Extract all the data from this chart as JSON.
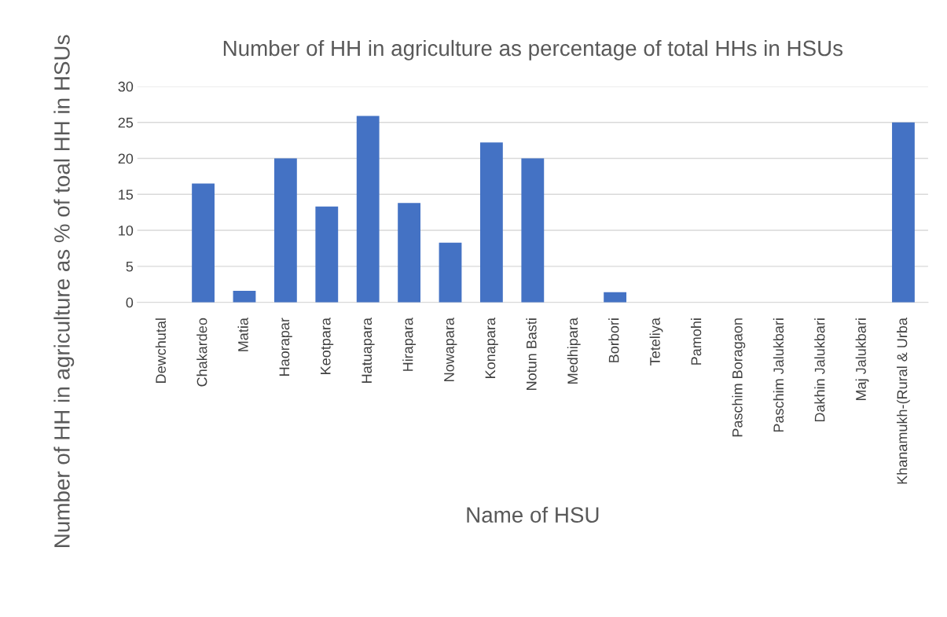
{
  "chart_data": {
    "type": "bar",
    "title": "Number of HH in agriculture as percentage of total HHs in HSUs",
    "xlabel": "Name of HSU",
    "ylabel": "Number of HH in agriculture as % of toal HH in HSUs",
    "categories": [
      "Dewchutal",
      "Chakardeo",
      "Matia",
      "Haorapar",
      "Keotpara",
      "Hatuapara",
      "Hirapara",
      "Nowapara",
      "Konapara",
      "Notun Basti",
      "Medhipara",
      "Borbori",
      "Teteliya",
      "Pamohi",
      "Paschim Boragaon",
      "Paschim Jalukbari",
      "Dakhin Jalukbari",
      "Maj Jalukbari",
      "Khanamukh-(Rural & Urba"
    ],
    "values": [
      0,
      16.5,
      1.6,
      20,
      13.3,
      25.9,
      13.8,
      8.3,
      22.2,
      20,
      0,
      1.4,
      0,
      0,
      0,
      0,
      0,
      0,
      25
    ],
    "color": "#4472c4",
    "ylim": [
      0,
      30
    ],
    "yticks": [
      0,
      5,
      10,
      15,
      20,
      25,
      30
    ],
    "grid": "y",
    "legend": false
  }
}
